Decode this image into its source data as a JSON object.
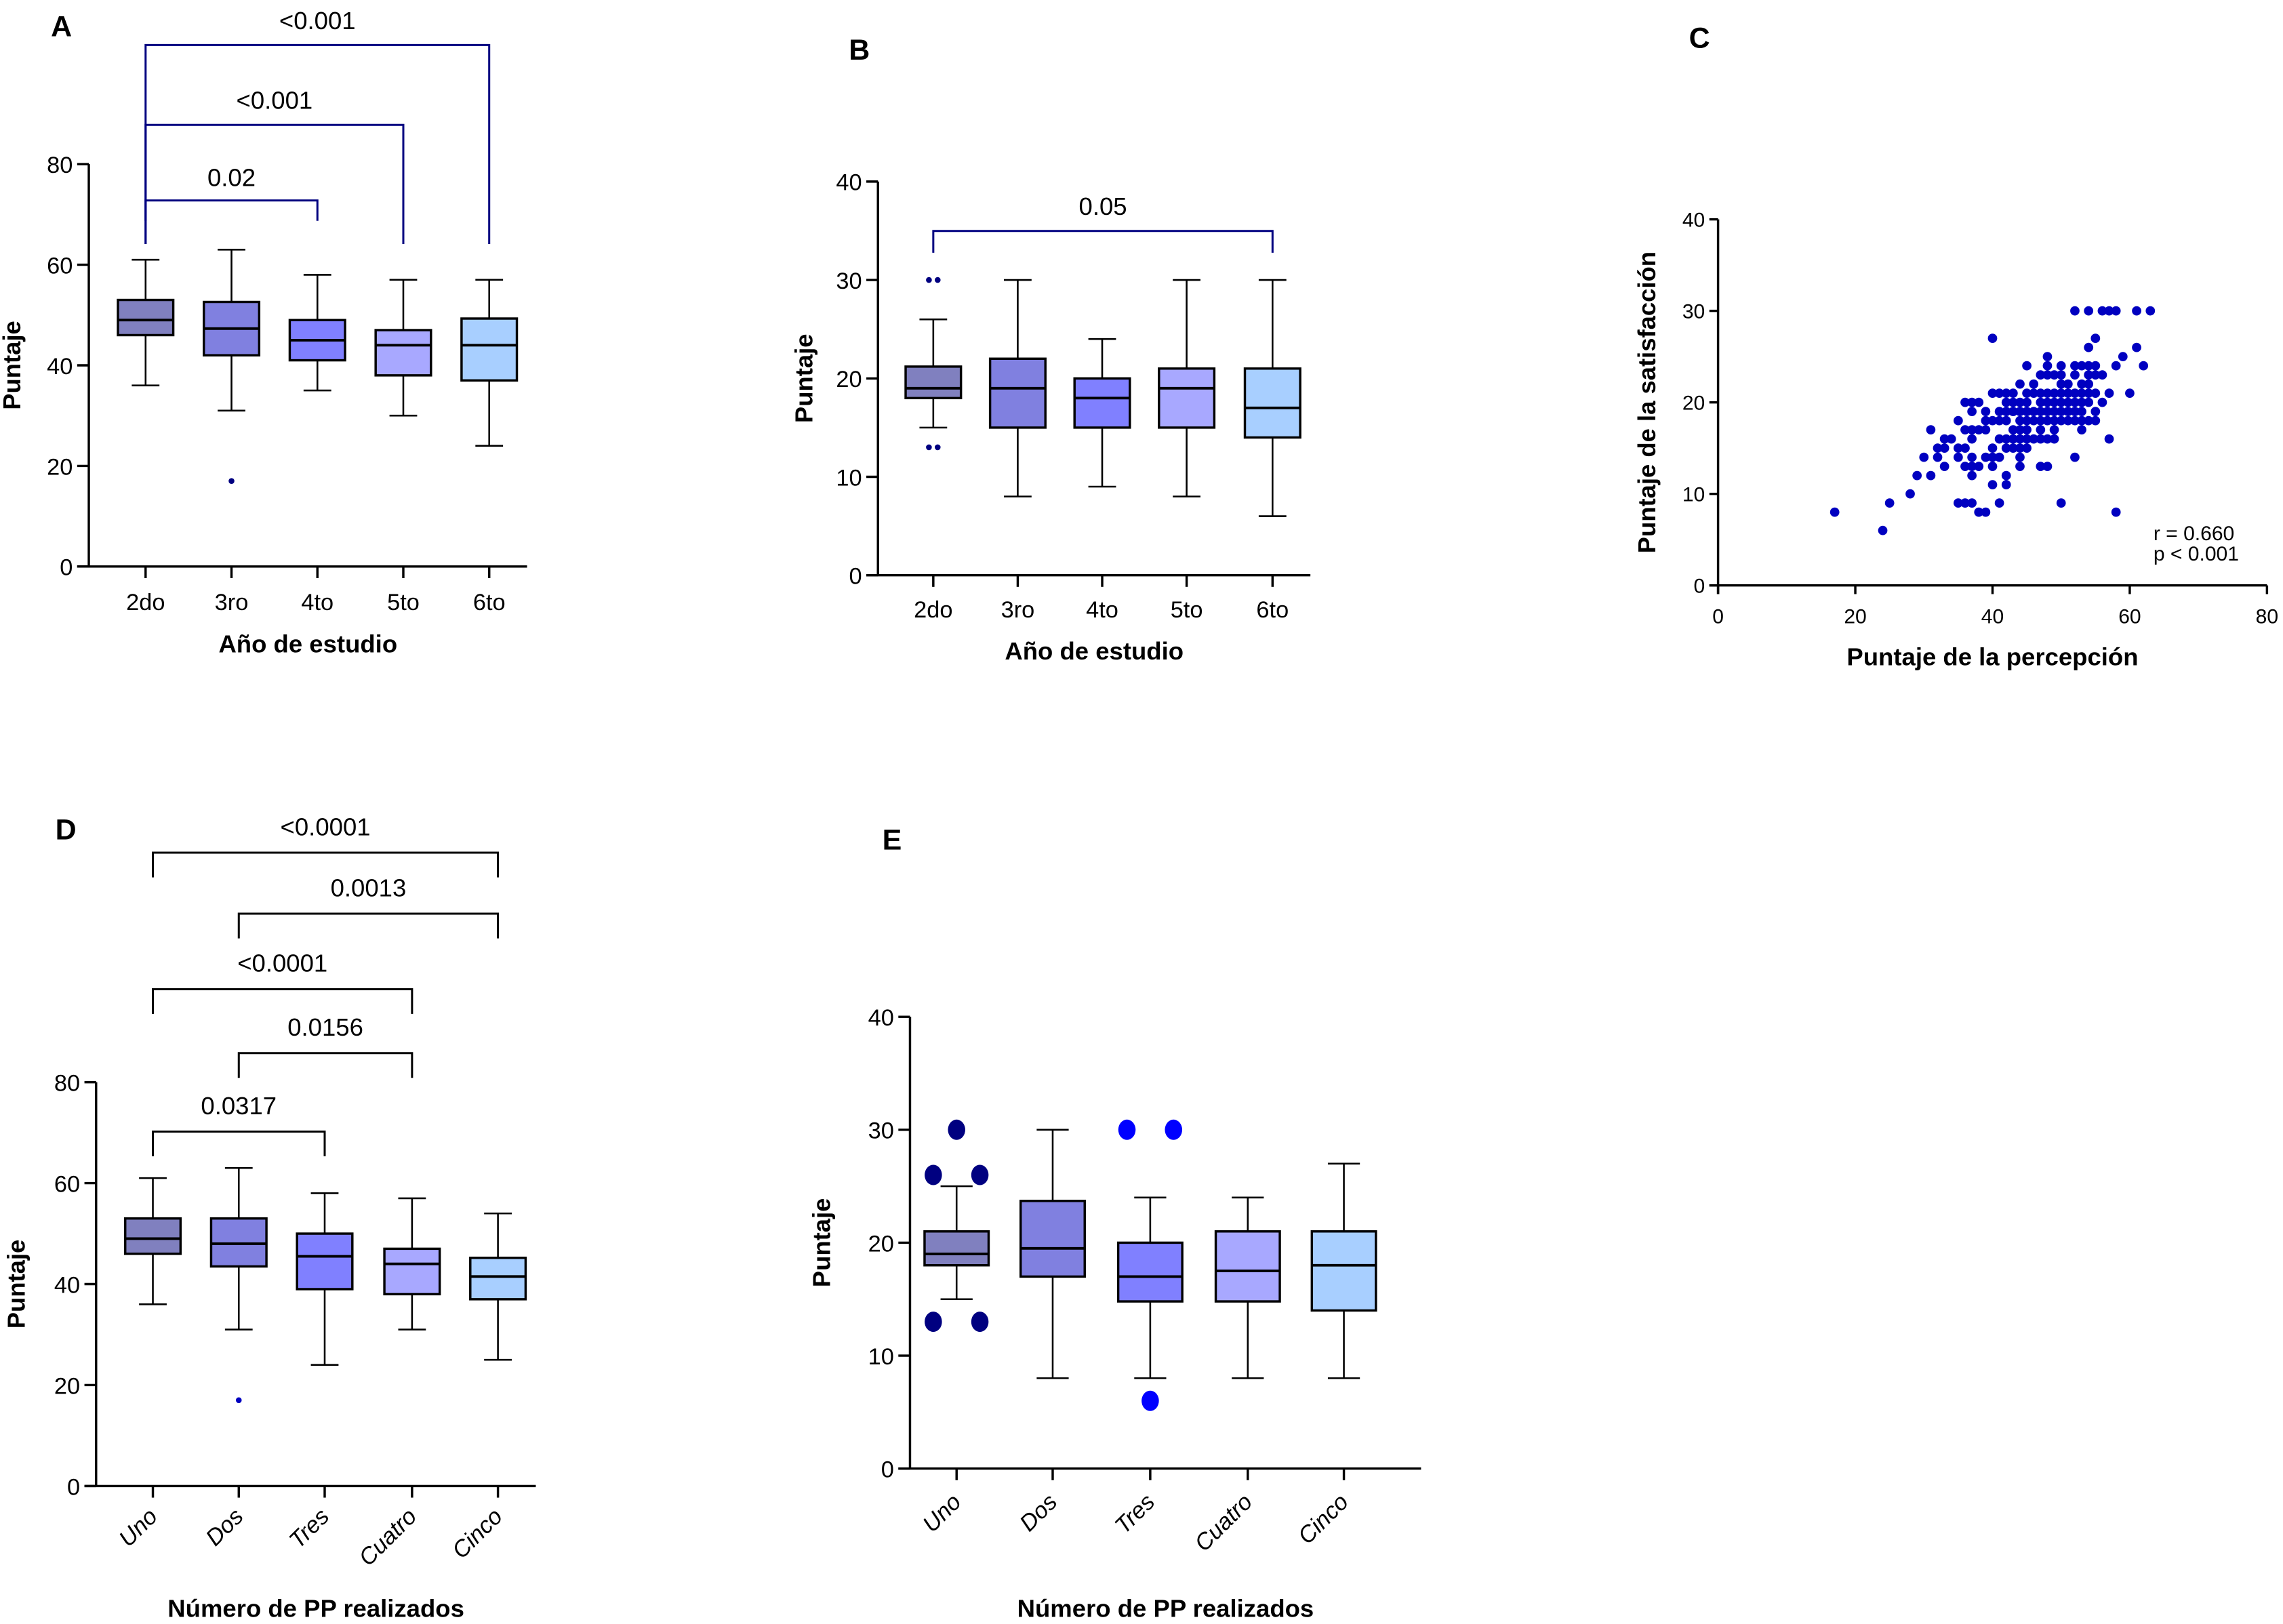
{
  "figure": {
    "box_colors": [
      "#8080BF",
      "#8080E0",
      "#8080FF",
      "#A8A8FF",
      "#A8CFFF"
    ],
    "bracket_color_navy": "#000080",
    "bracket_color_black": "#000000",
    "outlier_color_navy": "#000080",
    "outlier_color_blue": "#0000FF",
    "scatter_color": "#0000C0"
  },
  "chart_data": [
    {
      "id": "A",
      "panel_label": "A",
      "type": "box",
      "title": "",
      "xlabel": "Año de estudio",
      "ylabel": "Puntaje",
      "ylim": [
        0,
        80
      ],
      "yticks": [
        0,
        20,
        40,
        60,
        80
      ],
      "categories": [
        "2do",
        "3ro",
        "4to",
        "5to",
        "6to"
      ],
      "boxes": [
        {
          "min": 36,
          "q1": 46,
          "median": 49,
          "q3": 53,
          "max": 61,
          "outliers": []
        },
        {
          "min": 31,
          "q1": 42,
          "median": 47.3,
          "q3": 52.6,
          "max": 63,
          "outliers": [
            17
          ]
        },
        {
          "min": 35,
          "q1": 41,
          "median": 45,
          "q3": 49,
          "max": 58,
          "outliers": []
        },
        {
          "min": 30,
          "q1": 38,
          "median": 44,
          "q3": 47,
          "max": 57,
          "outliers": []
        },
        {
          "min": 24,
          "q1": 37,
          "median": 44,
          "q3": 49.3,
          "max": 57,
          "outliers": []
        }
      ],
      "comparisons": [
        {
          "from": 0,
          "to": 2,
          "label": "0.02"
        },
        {
          "from": 0,
          "to": 3,
          "label": "<0.001"
        },
        {
          "from": 0,
          "to": 4,
          "label": "<0.001"
        }
      ],
      "bracket_color": "navy",
      "outlier_color": "navy",
      "grid": false
    },
    {
      "id": "B",
      "panel_label": "B",
      "type": "box",
      "title": "",
      "xlabel": "Año de estudio",
      "ylabel": "Puntaje",
      "ylim": [
        0,
        40
      ],
      "yticks": [
        0,
        10,
        20,
        30,
        40
      ],
      "categories": [
        "2do",
        "3ro",
        "4to",
        "5to",
        "6to"
      ],
      "boxes": [
        {
          "min": 15,
          "q1": 18,
          "median": 19,
          "q3": 21.2,
          "max": 26,
          "outliers": [
            30,
            30,
            13,
            13
          ]
        },
        {
          "min": 8,
          "q1": 15,
          "median": 19,
          "q3": 22,
          "max": 30,
          "outliers": []
        },
        {
          "min": 9,
          "q1": 15,
          "median": 18,
          "q3": 20,
          "max": 24,
          "outliers": []
        },
        {
          "min": 8,
          "q1": 15,
          "median": 19,
          "q3": 21,
          "max": 30,
          "outliers": []
        },
        {
          "min": 6,
          "q1": 14,
          "median": 17,
          "q3": 21,
          "max": 30,
          "outliers": []
        }
      ],
      "comparisons": [
        {
          "from": 0,
          "to": 4,
          "label": "0.05"
        }
      ],
      "bracket_color": "navy",
      "outlier_color": "navy",
      "grid": false
    },
    {
      "id": "C",
      "panel_label": "C",
      "type": "scatter",
      "title": "",
      "xlabel": "Puntaje de la percepción",
      "ylabel": "Puntaje de la satisfacción",
      "xlim": [
        0,
        80
      ],
      "ylim": [
        0,
        40
      ],
      "xticks": [
        0,
        20,
        40,
        60,
        80
      ],
      "yticks": [
        0,
        10,
        20,
        30,
        40
      ],
      "annotation": [
        "r = 0.660",
        "p  < 0.001"
      ],
      "grid": false,
      "points": [
        [
          52,
          30
        ],
        [
          54,
          30
        ],
        [
          56,
          30
        ],
        [
          57,
          30
        ],
        [
          58,
          30
        ],
        [
          61,
          30
        ],
        [
          63,
          30
        ],
        [
          40,
          27
        ],
        [
          55,
          27
        ],
        [
          54,
          26
        ],
        [
          61,
          26
        ],
        [
          48,
          25
        ],
        [
          59,
          25
        ],
        [
          45,
          24
        ],
        [
          48,
          24
        ],
        [
          50,
          24
        ],
        [
          52,
          24
        ],
        [
          53,
          24
        ],
        [
          54,
          24
        ],
        [
          55,
          24
        ],
        [
          58,
          24
        ],
        [
          62,
          24
        ],
        [
          47,
          23
        ],
        [
          48,
          23
        ],
        [
          49,
          23
        ],
        [
          50,
          23
        ],
        [
          52,
          23
        ],
        [
          54,
          23
        ],
        [
          55,
          23
        ],
        [
          56,
          23
        ],
        [
          44,
          22
        ],
        [
          46,
          22
        ],
        [
          50,
          22
        ],
        [
          51,
          22
        ],
        [
          53,
          22
        ],
        [
          54,
          22
        ],
        [
          40,
          21
        ],
        [
          41,
          21
        ],
        [
          42,
          21
        ],
        [
          43,
          21
        ],
        [
          45,
          21
        ],
        [
          46,
          21
        ],
        [
          47,
          21
        ],
        [
          48,
          21
        ],
        [
          49,
          21
        ],
        [
          50,
          21
        ],
        [
          51,
          21
        ],
        [
          52,
          21
        ],
        [
          53,
          21
        ],
        [
          54,
          21
        ],
        [
          55,
          21
        ],
        [
          57,
          21
        ],
        [
          60,
          21
        ],
        [
          36,
          20
        ],
        [
          37,
          20
        ],
        [
          38,
          20
        ],
        [
          42,
          20
        ],
        [
          43,
          20
        ],
        [
          44,
          20
        ],
        [
          45,
          20
        ],
        [
          47,
          20
        ],
        [
          48,
          20
        ],
        [
          49,
          20
        ],
        [
          50,
          20
        ],
        [
          51,
          20
        ],
        [
          52,
          20
        ],
        [
          53,
          20
        ],
        [
          54,
          20
        ],
        [
          56,
          20
        ],
        [
          37,
          19
        ],
        [
          39,
          19
        ],
        [
          41,
          19
        ],
        [
          42,
          19
        ],
        [
          43,
          19
        ],
        [
          44,
          19
        ],
        [
          45,
          19
        ],
        [
          46,
          19
        ],
        [
          47,
          19
        ],
        [
          48,
          19
        ],
        [
          49,
          19
        ],
        [
          50,
          19
        ],
        [
          51,
          19
        ],
        [
          52,
          19
        ],
        [
          53,
          19
        ],
        [
          55,
          19
        ],
        [
          35,
          18
        ],
        [
          39,
          18
        ],
        [
          40,
          18
        ],
        [
          41,
          18
        ],
        [
          42,
          18
        ],
        [
          44,
          18
        ],
        [
          45,
          18
        ],
        [
          46,
          18
        ],
        [
          47,
          18
        ],
        [
          48,
          18
        ],
        [
          49,
          18
        ],
        [
          50,
          18
        ],
        [
          51,
          18
        ],
        [
          52,
          18
        ],
        [
          53,
          18
        ],
        [
          54,
          18
        ],
        [
          55,
          18
        ],
        [
          31,
          17
        ],
        [
          36,
          17
        ],
        [
          37,
          17
        ],
        [
          38,
          17
        ],
        [
          39,
          17
        ],
        [
          43,
          17
        ],
        [
          44,
          17
        ],
        [
          45,
          17
        ],
        [
          47,
          17
        ],
        [
          49,
          17
        ],
        [
          53,
          17
        ],
        [
          33,
          16
        ],
        [
          34,
          16
        ],
        [
          37,
          16
        ],
        [
          41,
          16
        ],
        [
          42,
          16
        ],
        [
          43,
          16
        ],
        [
          44,
          16
        ],
        [
          45,
          16
        ],
        [
          46,
          16
        ],
        [
          47,
          16
        ],
        [
          48,
          16
        ],
        [
          49,
          16
        ],
        [
          57,
          16
        ],
        [
          32,
          15
        ],
        [
          33,
          15
        ],
        [
          35,
          15
        ],
        [
          36,
          15
        ],
        [
          40,
          15
        ],
        [
          42,
          15
        ],
        [
          43,
          15
        ],
        [
          44,
          15
        ],
        [
          45,
          15
        ],
        [
          30,
          14
        ],
        [
          32,
          14
        ],
        [
          35,
          14
        ],
        [
          37,
          14
        ],
        [
          39,
          14
        ],
        [
          40,
          14
        ],
        [
          41,
          14
        ],
        [
          44,
          14
        ],
        [
          52,
          14
        ],
        [
          33,
          13
        ],
        [
          36,
          13
        ],
        [
          37,
          13
        ],
        [
          38,
          13
        ],
        [
          40,
          13
        ],
        [
          44,
          13
        ],
        [
          47,
          13
        ],
        [
          48,
          13
        ],
        [
          29,
          12
        ],
        [
          31,
          12
        ],
        [
          37,
          12
        ],
        [
          42,
          12
        ],
        [
          40,
          11
        ],
        [
          42,
          11
        ],
        [
          28,
          10
        ],
        [
          25,
          9
        ],
        [
          35,
          9
        ],
        [
          36,
          9
        ],
        [
          37,
          9
        ],
        [
          41,
          9
        ],
        [
          50,
          9
        ],
        [
          17,
          8
        ],
        [
          38,
          8
        ],
        [
          39,
          8
        ],
        [
          58,
          8
        ],
        [
          24,
          6
        ]
      ]
    },
    {
      "id": "D",
      "panel_label": "D",
      "type": "box",
      "title": "",
      "xlabel": "Número de PP realizados",
      "ylabel": "Puntaje",
      "ylim": [
        0,
        80
      ],
      "yticks": [
        0,
        20,
        40,
        60,
        80
      ],
      "categories": [
        "Uno",
        "Dos",
        "Tres",
        "Cuatro",
        "Cinco"
      ],
      "boxes": [
        {
          "min": 36,
          "q1": 46,
          "median": 49,
          "q3": 53,
          "max": 61,
          "outliers": []
        },
        {
          "min": 31,
          "q1": 43.5,
          "median": 48,
          "q3": 53,
          "max": 63,
          "outliers": [
            17
          ]
        },
        {
          "min": 24,
          "q1": 39,
          "median": 45.5,
          "q3": 50,
          "max": 58,
          "outliers": []
        },
        {
          "min": 31,
          "q1": 38,
          "median": 44,
          "q3": 47,
          "max": 57,
          "outliers": []
        },
        {
          "min": 25,
          "q1": 37,
          "median": 41.5,
          "q3": 45.2,
          "max": 54,
          "outliers": []
        }
      ],
      "comparisons": [
        {
          "from": 0,
          "to": 2,
          "label": "0.0317"
        },
        {
          "from": 1,
          "to": 3,
          "label": "0.0156"
        },
        {
          "from": 0,
          "to": 3,
          "label": "<0.0001"
        },
        {
          "from": 1,
          "to": 4,
          "label": "0.0013"
        },
        {
          "from": 0,
          "to": 4,
          "label": "<0.0001"
        }
      ],
      "bracket_color": "black",
      "outlier_color": "blue",
      "grid": false
    },
    {
      "id": "E",
      "panel_label": "E",
      "type": "box",
      "title": "",
      "xlabel": "Número de PP realizados",
      "ylabel": "Puntaje",
      "ylim": [
        0,
        40
      ],
      "yticks": [
        0,
        10,
        20,
        30,
        40
      ],
      "categories": [
        "Uno",
        "Dos",
        "Tres",
        "Cuatro",
        "Cinco"
      ],
      "boxes": [
        {
          "min": 15,
          "q1": 18,
          "median": 19,
          "q3": 21,
          "max": 25,
          "outliers": [
            30,
            26,
            26,
            13,
            13
          ]
        },
        {
          "min": 8,
          "q1": 17,
          "median": 19.5,
          "q3": 23.7,
          "max": 30,
          "outliers": []
        },
        {
          "min": 8,
          "q1": 14.8,
          "median": 17,
          "q3": 20,
          "max": 24,
          "outliers": [
            30,
            30,
            6
          ]
        },
        {
          "min": 8,
          "q1": 14.8,
          "median": 17.5,
          "q3": 21,
          "max": 24,
          "outliers": []
        },
        {
          "min": 8,
          "q1": 14,
          "median": 18,
          "q3": 21,
          "max": 27,
          "outliers": []
        }
      ],
      "comparisons": [],
      "outlier_color": "mixed",
      "grid": false
    }
  ]
}
